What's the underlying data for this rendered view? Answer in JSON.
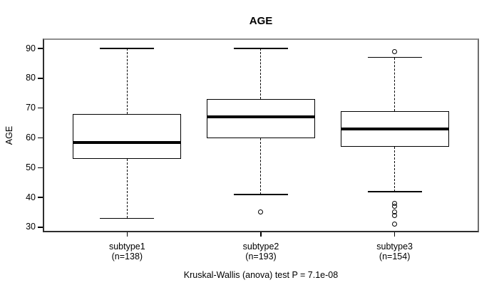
{
  "chart_data": {
    "type": "boxplot",
    "title": "AGE",
    "ylabel": "AGE",
    "xlabel": "",
    "ylim": [
      28.8,
      92.9
    ],
    "yticks": [
      30,
      40,
      50,
      60,
      70,
      80,
      90
    ],
    "grid": false,
    "legend": false,
    "annotation": "Kruskal-Wallis (anova) test P = 7.1e-08",
    "groups": [
      {
        "label": "subtype1",
        "sublabel": "(n=138)",
        "n": 138,
        "whisker_low": 33,
        "q1": 53,
        "median": 58.5,
        "q3": 68,
        "whisker_high": 90,
        "outliers": []
      },
      {
        "label": "subtype2",
        "sublabel": "(n=193)",
        "n": 193,
        "whisker_low": 41,
        "q1": 60,
        "median": 67,
        "q3": 73,
        "whisker_high": 90,
        "outliers": [
          35
        ]
      },
      {
        "label": "subtype3",
        "sublabel": "(n=154)",
        "n": 154,
        "whisker_low": 42,
        "q1": 57,
        "median": 63,
        "q3": 69,
        "whisker_high": 87,
        "outliers": [
          89,
          38,
          37,
          35,
          34,
          31
        ]
      }
    ],
    "colors": {
      "line": "#000000",
      "box_fill": "#ffffff",
      "background": "#ffffff",
      "frame_top": "#8f8f8f"
    }
  }
}
